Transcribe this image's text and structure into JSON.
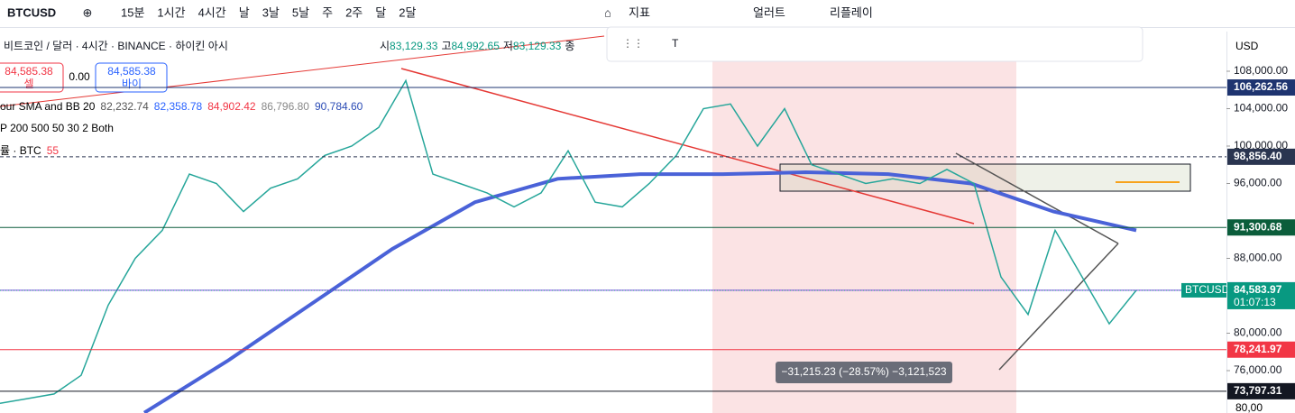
{
  "toolbar": {
    "symbol": "BTCUSD",
    "intervals": [
      "15분",
      "1시간",
      "4시간",
      "날",
      "3날",
      "5날",
      "주",
      "2주",
      "달",
      "2달"
    ],
    "indicators": "지표",
    "alerts": "얼러트",
    "replay": "리플레이"
  },
  "legend": {
    "title": "비트코인 / 달러 · 4시간 · BINANCE · 하이킨 아시",
    "open_label": "시",
    "open": "83,129.33",
    "high_label": "고",
    "high": "84,992.65",
    "low_label": "저",
    "low": "83,129.33",
    "close_label": "종",
    "sell_price": "84,585.38",
    "sell_label": "셀",
    "spread": "0.00",
    "buy_price": "84,585.38",
    "buy_label": "바이",
    "indicator1": "our SMA and BB 20",
    "ind1_values": [
      "82,232.74",
      "82,358.78",
      "84,902.42",
      "86,796.80",
      "90,784.60"
    ],
    "indicator2": "P 200 500 50 30 2 Both",
    "indicator3": "률 · BTC",
    "indicator3_value": "55"
  },
  "currency": "USD",
  "price_axis": {
    "ylim": [
      71470,
      112240
    ],
    "ticks": [
      {
        "value": 108000,
        "label": "108,000.00"
      },
      {
        "value": 104000,
        "label": "104,000.00"
      },
      {
        "value": 100000,
        "label": "100,000.00"
      },
      {
        "value": 96000,
        "label": "96,000.00"
      },
      {
        "value": 88000,
        "label": "88,000.00"
      },
      {
        "value": 80000,
        "label": "80,000.00"
      },
      {
        "value": 76000,
        "label": "76,000.00"
      }
    ]
  },
  "levels": [
    {
      "value": 106262.56,
      "label": "106,262.56",
      "color": "#1e3470"
    },
    {
      "value": 98856.4,
      "label": "98,856.40",
      "color": "#2a3550"
    },
    {
      "value": 91300.68,
      "label": "91,300.68",
      "color": "#0b5d3b"
    },
    {
      "value": 84585.38,
      "label": "84,585.38",
      "color": "#7b3fe4"
    },
    {
      "value": 78241.97,
      "label": "78,241.97",
      "color": "#f23645"
    },
    {
      "value": 73797.31,
      "label": "73,797.31",
      "color": "#131722"
    }
  ],
  "current": {
    "value": 84583.97,
    "label": "84,583.97",
    "symbol": "BTCUSD",
    "countdown": "01:07:13",
    "color": "#089981"
  },
  "price_path": {
    "values": [
      72500,
      73000,
      73500,
      75500,
      83000,
      88000,
      91000,
      97000,
      96000,
      93000,
      95500,
      96500,
      99000,
      100000,
      102000,
      107000,
      97000,
      96000,
      95000,
      93500,
      95000,
      99500,
      94000,
      93500,
      96000,
      99000,
      104000,
      104500,
      100000,
      104000,
      98000,
      97000,
      96000,
      96500,
      96000,
      97500,
      96000,
      86000,
      82000,
      91000,
      86000,
      81000,
      84585
    ]
  },
  "ma_200": {
    "values": [
      71500,
      77000,
      83000,
      89000,
      94000,
      96500,
      97000,
      97000,
      97200,
      97000,
      96000,
      93000,
      91000
    ]
  },
  "measure": "−31,215.23 (−28.57%) −3,121,523",
  "volume_axis_label": "80,00"
}
